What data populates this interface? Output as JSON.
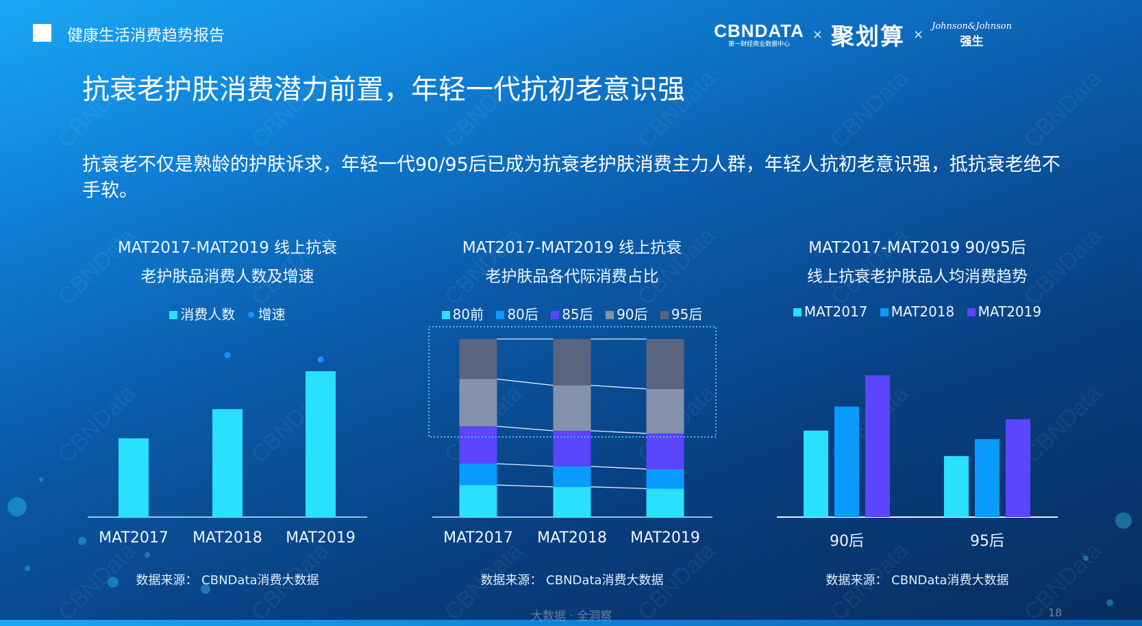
{
  "header": {
    "report_name": "健康生活消费趋势报告",
    "logos": {
      "cbndata": "CBNDATA",
      "cbndata_sub": "第一财经商业数据中心",
      "juhuasuan": "聚划算",
      "jj_script": "Johnson&Johnson",
      "jj_cn": "强生",
      "separator": "×"
    }
  },
  "title": "抗衰老护肤消费潜力前置，年轻一代抗初老意识强",
  "paragraph": "抗衰老不仅是熟龄的护肤诉求，年轻一代90/95后已成为抗衰老护肤消费主力人群，年轻人抗初老意识强，抵抗衰老绝不手软。",
  "watermark": "CBNData",
  "colors": {
    "cyan": "#29e0ff",
    "blue": "#0a9bff",
    "purple": "#5b45ff",
    "gray": "#8592ab",
    "darkgray": "#5a6580"
  },
  "chart_data": [
    {
      "type": "bar",
      "title_lines": [
        "MAT2017-MAT2019 线上抗衰",
        "老护肤品消费人数及增速"
      ],
      "categories": [
        "MAT2017",
        "MAT2018",
        "MAT2019"
      ],
      "series": [
        {
          "name": "消费人数",
          "values": [
            54,
            74,
            100
          ],
          "kind": "bar",
          "color": "#29e0ff"
        },
        {
          "name": "增速",
          "values": [
            null,
            111,
            108
          ],
          "kind": "dot",
          "color": "#1a8fff"
        }
      ],
      "note": "relative values, no axis printed",
      "source": "数据来源：  CBNData消费大数据"
    },
    {
      "type": "bar",
      "stacked": true,
      "percent": true,
      "title_lines": [
        "MAT2017-MAT2019 线上抗衰",
        "老护肤品各代际消费占比"
      ],
      "categories": [
        "MAT2017",
        "MAT2018",
        "MAT2019"
      ],
      "series": [
        {
          "name": "80前",
          "values": [
            18,
            17,
            16
          ],
          "color": "#29e0ff"
        },
        {
          "name": "80后",
          "values": [
            12,
            11.5,
            11
          ],
          "color": "#0a9bff"
        },
        {
          "name": "85后",
          "values": [
            21,
            20,
            20
          ],
          "color": "#5b45ff"
        },
        {
          "name": "90后",
          "values": [
            26.5,
            25.5,
            25
          ],
          "color": "#8592ab"
        },
        {
          "name": "95后",
          "values": [
            22.5,
            26,
            28
          ],
          "color": "#5a6580"
        }
      ],
      "highlight": [
        "90后",
        "95后"
      ],
      "source": "数据来源：  CBNData消费大数据"
    },
    {
      "type": "bar",
      "title_lines": [
        "MAT2017-MAT2019 90/95后",
        "线上抗衰老护肤品人均消费趋势"
      ],
      "categories": [
        "90后",
        "95后"
      ],
      "series": [
        {
          "name": "MAT2017",
          "values": [
            61,
            43
          ],
          "color": "#29e0ff"
        },
        {
          "name": "MAT2018",
          "values": [
            78,
            55
          ],
          "color": "#0a9bff"
        },
        {
          "name": "MAT2019",
          "values": [
            100,
            69
          ],
          "color": "#5b45ff"
        }
      ],
      "source": "数据来源：  CBNData消费大数据"
    }
  ],
  "footer": {
    "slogan": "大数据 · 全洞察",
    "page": "18"
  }
}
